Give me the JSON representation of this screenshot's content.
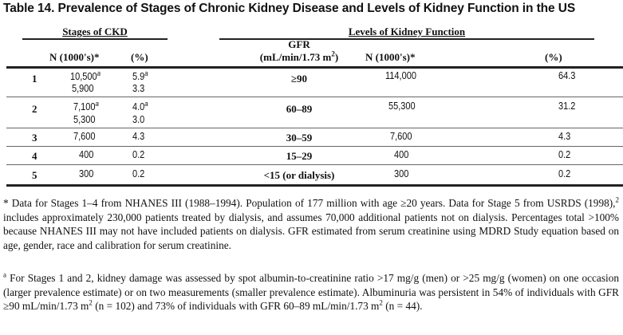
{
  "title": "Table 14. Prevalence of Stages of Chronic Kidney Disease and Levels of Kidney Function in the US",
  "groups": {
    "stages": "Stages of CKD",
    "levels": "Levels of Kidney Function"
  },
  "headers": {
    "n_left": "N (1000's)*",
    "pct_left": "(%)",
    "gfr_line1": "GFR",
    "gfr_line2": "(mL/min/1.73 m",
    "gfr_sup": "2",
    "gfr_close": ")",
    "n_right": "N (1000's)*",
    "pct_right": "(%)"
  },
  "rows": [
    {
      "stage": "1",
      "n": "10,500",
      "n_sup": "a",
      "n2": "5,900",
      "pct": "5.9",
      "pct_sup": "a",
      "pct2": "3.3",
      "gfr": "≥90",
      "n_gfr": "114,000",
      "pct_gfr": "64.3"
    },
    {
      "stage": "2",
      "n": "7,100",
      "n_sup": "a",
      "n2": "5,300",
      "pct": "4.0",
      "pct_sup": "a",
      "pct2": "3.0",
      "gfr": "60–89",
      "n_gfr": "55,300",
      "pct_gfr": "31.2"
    },
    {
      "stage": "3",
      "n": "7,600",
      "pct": "4.3",
      "gfr": "30–59",
      "n_gfr": "7,600",
      "pct_gfr": "4.3"
    },
    {
      "stage": "4",
      "n": "400",
      "pct": "0.2",
      "gfr": "15–29",
      "n_gfr": "400",
      "pct_gfr": "0.2"
    },
    {
      "stage": "5",
      "n": "300",
      "pct": "0.2",
      "gfr": "<15 (or dialysis)",
      "n_gfr": "300",
      "pct_gfr": "0.2"
    }
  ],
  "footnotes": {
    "star_mark": "*",
    "star_a": "Data for Stages 1–4 from NHANES III (1988–1994). Population of 177 million with age ≥20 years. Data for Stage 5 from USRDS (1998),",
    "star_ref": "2",
    "star_b": " includes approximately 230,000 patients treated by dialysis, and assumes 70,000 additional patients not on dialysis. Percentages total >100% because NHANES III may not have included patients on dialysis. GFR estimated from serum creatinine using MDRD Study equation based on age, gender, race and calibration for serum creatinine.",
    "a_mark": "a",
    "a_1": "For Stages 1 and 2, kidney damage was assessed by spot albumin-to-creatinine ratio >17 mg/g (men) or >25 mg/g (women) on one occasion (larger prevalence estimate) or on two measurements (smaller prevalence estimate). Albuminuria was persistent in 54% of individuals with GFR ≥90 mL/min/1.73 m",
    "a_sup1": "2",
    "a_2": " (n = 102) and 73% of individuals with GFR 60–89 mL/min/1.73 m",
    "a_sup2": "2",
    "a_3": " (n = 44)."
  }
}
